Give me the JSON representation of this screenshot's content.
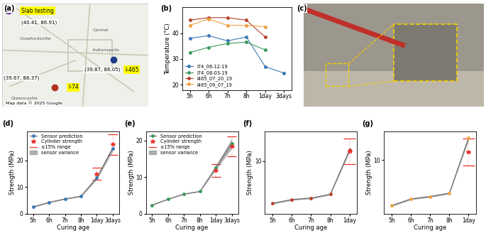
{
  "panel_labels": [
    "(a)",
    "(b)",
    "(c)",
    "(d)",
    "(e)",
    "(f)",
    "(g)"
  ],
  "map": {
    "places": [
      "Crawfordsville",
      "Carmel",
      "Indianapolis",
      "Greencastle"
    ],
    "sites": [
      {
        "name": "Slab testing",
        "coords": "(40.41, 86.91)",
        "color": "#7b3fa0"
      },
      {
        "name": "I-465",
        "coords": "(39.87, 86.05)",
        "color": "#1f3c88"
      },
      {
        "name": "I-74",
        "coords": "(39.67, 86.37)",
        "color": "#b0301e"
      }
    ],
    "credit": "Map data © 2025 Google"
  },
  "chart_data": [
    {
      "type": "line",
      "y_label": "Temperature (°C)",
      "categories": [
        "5h",
        "6h",
        "7h",
        "8h",
        "1day",
        "3days"
      ],
      "ylim": [
        18,
        50
      ],
      "yticks": [
        20,
        30,
        40
      ],
      "legend": "lower left",
      "series": [
        {
          "name": "I74_06-12-19",
          "color": "#3a78b5",
          "marker": "o",
          "values": [
            38,
            39,
            37,
            38.5,
            27,
            24.5
          ]
        },
        {
          "name": "I74_08-03-19",
          "color": "#3a9a5b",
          "marker": "o",
          "values": [
            32.5,
            34.5,
            36,
            36.5,
            33.5,
            null
          ]
        },
        {
          "name": "I465_07_20_19",
          "color": "#b5432d",
          "marker": "o",
          "values": [
            45,
            46,
            46,
            45,
            38.5,
            null
          ]
        },
        {
          "name": "I465_09_07_19",
          "color": "#f0a040",
          "marker": "o",
          "values": [
            43,
            45.5,
            43,
            43,
            42.5,
            null
          ]
        }
      ]
    },
    {
      "type": "line",
      "x_label": "Curing age",
      "y_label": "Strength (MPa)",
      "categories": [
        "5h",
        "6h",
        "7h",
        "8h",
        "1day",
        "3days"
      ],
      "ylim": [
        0,
        31
      ],
      "yticks": [
        0,
        10,
        20
      ],
      "legend": "upper left",
      "series": [
        {
          "name": "Sensor prediction",
          "color": "#3a78b5",
          "marker": "o",
          "values": [
            2.6,
            4.3,
            5.6,
            6.6,
            13.5,
            24.5
          ]
        },
        {
          "name": "Cylinder strength",
          "type": "scatter",
          "color": "#e8322d",
          "marker": "*",
          "values": [
            null,
            null,
            null,
            null,
            15,
            26
          ]
        },
        {
          "name": "±15% range",
          "type": "range",
          "color": "#e8322d",
          "low": [
            null,
            null,
            null,
            null,
            12.75,
            22.1
          ],
          "high": [
            null,
            null,
            null,
            null,
            17.25,
            29.9
          ]
        },
        {
          "name": "sensor variance",
          "type": "band",
          "color": "#808080",
          "low": [
            2.4,
            4.1,
            5.4,
            6.4,
            12.8,
            23.5
          ],
          "high": [
            2.8,
            4.5,
            5.8,
            6.8,
            14.2,
            25.5
          ]
        }
      ]
    },
    {
      "type": "line",
      "x_label": "Curing age",
      "y_label": "Strength (MPa)",
      "categories": [
        "5h",
        "6h",
        "7h",
        "8h",
        "1day",
        "3days"
      ],
      "ylim": [
        0,
        22.5
      ],
      "yticks": [
        0,
        10,
        20
      ],
      "legend": "upper left",
      "series": [
        {
          "name": "Sensor prediction",
          "color": "#3a9a5b",
          "marker": "o",
          "values": [
            2.4,
            4.0,
            5.4,
            6.1,
            12.6,
            19.2
          ]
        },
        {
          "name": "Cylinder strength",
          "type": "scatter",
          "color": "#e8322d",
          "marker": "*",
          "values": [
            null,
            null,
            null,
            null,
            11.7,
            18.3
          ]
        },
        {
          "name": "±15% range",
          "type": "range",
          "color": "#e8322d",
          "low": [
            null,
            null,
            null,
            null,
            10.0,
            15.6
          ],
          "high": [
            null,
            null,
            null,
            null,
            13.5,
            21.0
          ]
        },
        {
          "name": "sensor variance",
          "type": "band",
          "color": "#808080",
          "low": [
            2.3,
            3.9,
            5.3,
            6.0,
            12.0,
            17.8
          ],
          "high": [
            2.5,
            4.1,
            5.5,
            6.2,
            13.2,
            20.5
          ]
        }
      ]
    },
    {
      "type": "line",
      "x_label": "Curing age",
      "y_label": "Strength (MPa)",
      "categories": [
        "5h",
        "6h",
        "7h",
        "8h",
        "1day"
      ],
      "ylim": [
        3,
        14
      ],
      "yticks": [
        10
      ],
      "series": [
        {
          "color": "#b5432d",
          "marker": "o",
          "values": [
            4.4,
            4.9,
            5.1,
            5.6,
            11.5
          ]
        },
        {
          "type": "scatter",
          "color": "#e8322d",
          "marker": "*",
          "values": [
            null,
            null,
            null,
            null,
            11.3
          ]
        },
        {
          "type": "range",
          "color": "#e8322d",
          "low": [
            null,
            null,
            null,
            null,
            9.6
          ],
          "high": [
            null,
            null,
            null,
            null,
            13.0
          ]
        },
        {
          "type": "band",
          "color": "#808080",
          "low": [
            4.3,
            4.8,
            5.0,
            5.5,
            11.2
          ],
          "high": [
            4.5,
            5.0,
            5.2,
            5.7,
            11.8
          ]
        }
      ]
    },
    {
      "type": "line",
      "x_label": "Curing age",
      "y_label": "Strength (MPa)",
      "categories": [
        "5h",
        "6h",
        "7h",
        "8h",
        "1day"
      ],
      "ylim": [
        3.5,
        13.5
      ],
      "yticks": [
        10
      ],
      "series": [
        {
          "color": "#f0a040",
          "marker": "o",
          "values": [
            4.5,
            5.3,
            5.6,
            6.0,
            12.7
          ]
        },
        {
          "type": "scatter",
          "color": "#e8322d",
          "marker": "*",
          "values": [
            null,
            null,
            null,
            null,
            11.0
          ]
        },
        {
          "type": "range",
          "color": "#e8322d",
          "low": [
            null,
            null,
            null,
            null,
            9.35
          ],
          "high": [
            null,
            null,
            null,
            null,
            12.65
          ]
        },
        {
          "type": "band",
          "color": "#808080",
          "low": [
            4.4,
            5.2,
            5.5,
            5.9,
            12.4
          ],
          "high": [
            4.6,
            5.4,
            5.7,
            6.1,
            13.0
          ]
        }
      ]
    }
  ]
}
